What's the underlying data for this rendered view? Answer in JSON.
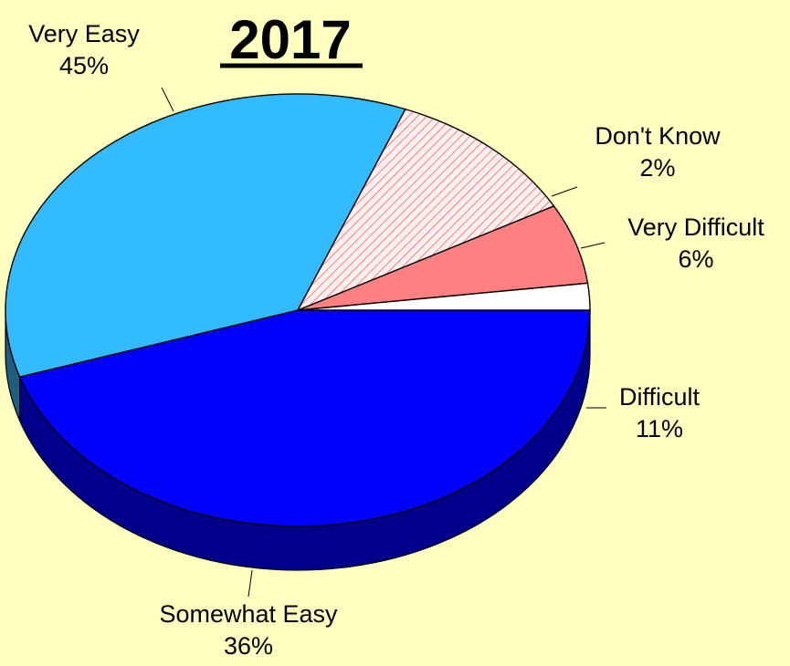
{
  "chart_data": {
    "type": "pie",
    "title": "2017",
    "style": "3d-exploded-none",
    "slices": [
      {
        "label": "Very Easy",
        "value": 45,
        "value_label": "45%",
        "color": "#0000FF",
        "side_color": "#00008B",
        "fill": "solid"
      },
      {
        "label": "Don't Know",
        "value": 2,
        "value_label": "2%",
        "color": "#FFFFFF",
        "side_color": "#9A9A9A",
        "fill": "solid"
      },
      {
        "label": "Very Difficult",
        "value": 6,
        "value_label": "6%",
        "color": "#FF8080",
        "side_color": "#8B4A4A",
        "fill": "solid"
      },
      {
        "label": "Difficult",
        "value": 11,
        "value_label": "11%",
        "color": "#FFF0F0",
        "side_color": "#8B4444",
        "fill": "hatched",
        "hatch_color": "#FF6060"
      },
      {
        "label": "Somewhat Easy",
        "value": 36,
        "value_label": "36%",
        "color": "#33BBFF",
        "side_color": "#1B5E7E",
        "fill": "solid"
      }
    ],
    "legend": "none",
    "background": "#FFFFC0"
  }
}
